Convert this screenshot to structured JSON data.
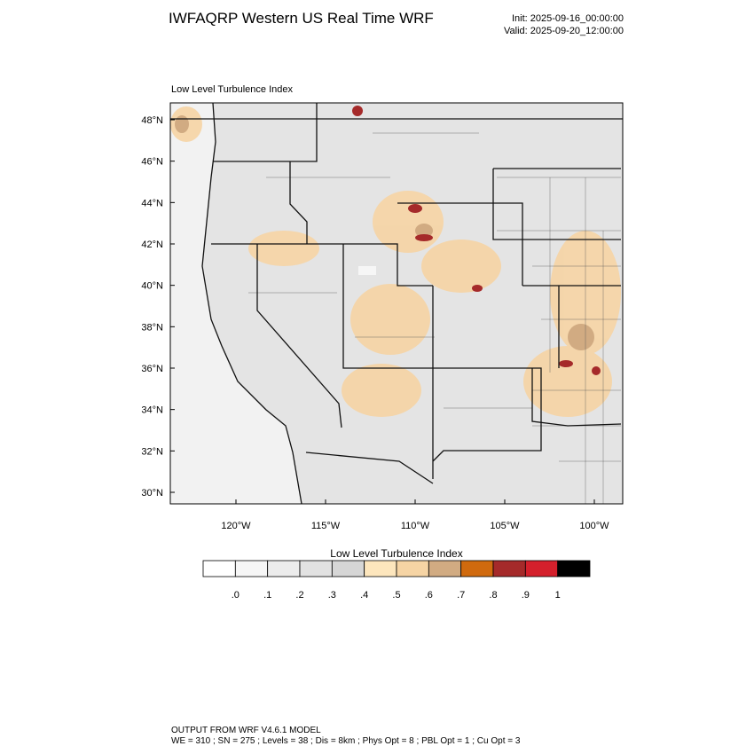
{
  "header": {
    "title": "IWFAQRP Western US Real Time WRF",
    "init": "Init: 2025-09-16_00:00:00",
    "valid": "Valid: 2025-09-20_12:00:00"
  },
  "map": {
    "title": "Low Level Turbulence Index",
    "lat_labels": [
      "48°N",
      "46°N",
      "44°N",
      "42°N",
      "40°N",
      "38°N",
      "36°N",
      "34°N",
      "32°N",
      "30°N"
    ],
    "lon_labels": [
      "120°W",
      "115°W",
      "110°W",
      "105°W",
      "100°W"
    ]
  },
  "colorbar": {
    "title": "Low Level Turbulence Index",
    "colors": [
      "#ffffff",
      "#f6f6f6",
      "#ececec",
      "#e2e2e2",
      "#d6d6d6",
      "#fde6bd",
      "#f6d4a4",
      "#d1ab82",
      "#d06a0e",
      "#a52a2a",
      "#d4202c",
      "#000000"
    ],
    "labels": [
      ".0",
      ".1",
      ".2",
      ".3",
      ".4",
      ".5",
      ".6",
      ".7",
      ".8",
      ".9",
      "1"
    ]
  },
  "footer": {
    "line1": "OUTPUT FROM WRF V4.6.1 MODEL",
    "line2": "WE = 310 ; SN = 275 ; Levels = 38 ; Dis = 8km ; Phys Opt = 8 ; PBL Opt = 1 ; Cu Opt = 3"
  }
}
